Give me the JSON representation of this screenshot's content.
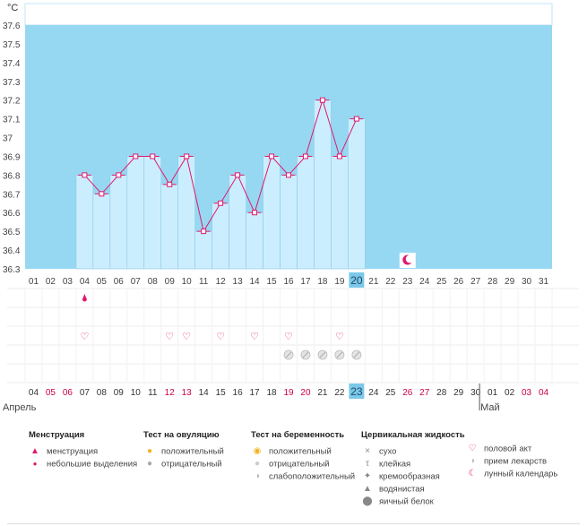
{
  "chart_data": {
    "type": "bar+line",
    "unit_label": "°C",
    "ylim": [
      36.3,
      37.7
    ],
    "y_ticks": [
      "37.6",
      "37.5",
      "37.4",
      "37.3",
      "37.2",
      "37.1",
      "37",
      "36.9",
      "36.8",
      "36.7",
      "36.6",
      "36.5",
      "36.4",
      "36.3"
    ],
    "y_tick_values": [
      37.6,
      37.5,
      37.4,
      37.3,
      37.2,
      37.1,
      37.0,
      36.9,
      36.8,
      36.7,
      36.6,
      36.5,
      36.4,
      36.3
    ],
    "cycle_days": [
      "01",
      "02",
      "03",
      "04",
      "05",
      "06",
      "07",
      "08",
      "09",
      "10",
      "11",
      "12",
      "13",
      "14",
      "15",
      "16",
      "17",
      "18",
      "19",
      "20",
      "21",
      "22",
      "23",
      "24",
      "25",
      "26",
      "27",
      "28",
      "29",
      "30",
      "31"
    ],
    "temperatures": [
      null,
      null,
      null,
      36.8,
      36.7,
      36.8,
      36.9,
      36.9,
      36.75,
      36.9,
      36.5,
      36.65,
      36.8,
      36.6,
      36.9,
      36.8,
      36.9,
      37.2,
      36.9,
      37.1,
      null,
      null,
      null,
      null,
      null,
      null,
      null,
      null,
      null,
      null,
      null
    ],
    "highlight_day": "20",
    "moon_day_index": 22,
    "dates": [
      "04",
      "05",
      "06",
      "07",
      "08",
      "09",
      "10",
      "11",
      "12",
      "13",
      "14",
      "15",
      "16",
      "17",
      "18",
      "19",
      "20",
      "21",
      "22",
      "23",
      "24",
      "25",
      "26",
      "27",
      "28",
      "29",
      "30",
      "01",
      "02",
      "03",
      "04"
    ],
    "date_colors": [
      "#333333",
      "#cc0044",
      "#cc0044",
      "#333333",
      "#333333",
      "#333333",
      "#333333",
      "#333333",
      "#cc0044",
      "#cc0044",
      "#333333",
      "#333333",
      "#333333",
      "#333333",
      "#333333",
      "#cc0044",
      "#cc0044",
      "#333333",
      "#333333",
      "#333333",
      "#333333",
      "#333333",
      "#cc0044",
      "#cc0044",
      "#333333",
      "#333333",
      "#333333",
      "#333333",
      "#333333",
      "#cc0044",
      "#cc0044"
    ],
    "highlight_date_index": 19,
    "months": [
      {
        "label": "Апрель",
        "start_index": 0
      },
      {
        "label": "Май",
        "start_index": 27
      }
    ],
    "events": {
      "menstruation_spotting_days": [
        3
      ],
      "intercourse_days": [
        3,
        8,
        9,
        11,
        13,
        15,
        18
      ],
      "medication_days": [
        15,
        16,
        17,
        18,
        19
      ]
    },
    "colors": {
      "plot_bg": "#96d8f2",
      "bar_fill": "#cbeeff",
      "bar_stroke": "#8cc8e4",
      "line": "#e0196e",
      "highlight": "#7cc8ea",
      "accent_red": "#cc0044"
    }
  },
  "legend": {
    "menstruation": {
      "title": "Менструация",
      "items": [
        "менструация",
        "небольшие выделения"
      ]
    },
    "ovulation_test": {
      "title": "Тест на овуляцию",
      "items": [
        "положительный",
        "отрицательный"
      ]
    },
    "pregnancy_test": {
      "title": "Тест на беременность",
      "items": [
        "положительный",
        "отрицательный",
        "слабоположительный"
      ]
    },
    "cervical_fluid": {
      "title": "Цервикальная жидкость",
      "items": [
        "сухо",
        "клейкая",
        "кремообразная",
        "водянистая",
        "яичный белок"
      ]
    },
    "other": {
      "items": [
        "половой акт",
        "прием лекарств",
        "лунный календарь"
      ]
    }
  }
}
